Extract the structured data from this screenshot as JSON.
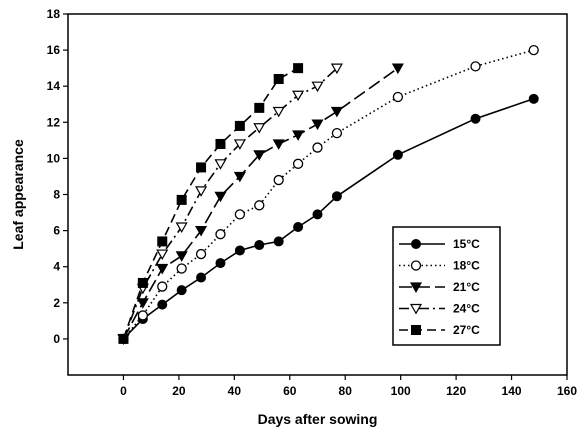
{
  "chart_data": {
    "type": "line",
    "xlabel": "Days after sowing",
    "ylabel": "Leaf appearance",
    "xlim": [
      -20,
      160
    ],
    "ylim": [
      -2,
      18
    ],
    "xticks": [
      0,
      20,
      40,
      60,
      80,
      100,
      120,
      140,
      160
    ],
    "xtick_labels": [
      "0",
      "20",
      "40",
      "60",
      "80",
      "100",
      "120",
      "140",
      "160"
    ],
    "yticks": [
      0,
      2,
      4,
      6,
      8,
      10,
      12,
      14,
      16,
      18
    ],
    "ytick_labels": [
      "0",
      "2",
      "4",
      "6",
      "8",
      "10",
      "12",
      "14",
      "16",
      "18"
    ],
    "grid": false,
    "legend_position": "bottom-right",
    "series": [
      {
        "name": "15°C",
        "marker": "filled-circle",
        "line": "solid",
        "x": [
          0,
          7,
          14,
          21,
          28,
          35,
          42,
          49,
          56,
          63,
          70,
          77,
          99,
          127,
          148
        ],
        "y": [
          0,
          1.1,
          1.9,
          2.7,
          3.4,
          4.2,
          4.9,
          5.2,
          5.4,
          6.2,
          6.9,
          7.9,
          10.2,
          12.2,
          13.3
        ]
      },
      {
        "name": "18°C",
        "marker": "open-circle",
        "line": "dotted",
        "x": [
          0,
          7,
          14,
          21,
          28,
          35,
          42,
          49,
          56,
          63,
          70,
          77,
          99,
          127,
          148
        ],
        "y": [
          0,
          1.3,
          2.9,
          3.9,
          4.7,
          5.8,
          6.9,
          7.4,
          8.8,
          9.7,
          10.6,
          11.4,
          13.4,
          15.1,
          16.0
        ]
      },
      {
        "name": "21°C",
        "marker": "filled-triangle-down",
        "line": "long-dash",
        "x": [
          0,
          7,
          14,
          21,
          28,
          35,
          42,
          49,
          56,
          63,
          70,
          77,
          99
        ],
        "y": [
          0,
          2.0,
          3.9,
          4.6,
          6.0,
          7.9,
          9.0,
          10.2,
          10.8,
          11.3,
          11.9,
          12.6,
          15.0
        ]
      },
      {
        "name": "24°C",
        "marker": "open-triangle-down",
        "line": "dash-dot",
        "x": [
          0,
          7,
          14,
          21,
          28,
          35,
          42,
          49,
          56,
          63,
          70,
          77
        ],
        "y": [
          0,
          2.8,
          4.7,
          6.2,
          8.2,
          9.7,
          10.8,
          11.7,
          12.6,
          13.5,
          14.0,
          15.0
        ]
      },
      {
        "name": "27°C",
        "marker": "filled-square",
        "line": "dashed",
        "x": [
          0,
          7,
          14,
          21,
          28,
          35,
          42,
          49,
          56,
          63
        ],
        "y": [
          0,
          3.1,
          5.4,
          7.7,
          9.5,
          10.8,
          11.8,
          12.8,
          14.4,
          15.0
        ]
      }
    ]
  }
}
